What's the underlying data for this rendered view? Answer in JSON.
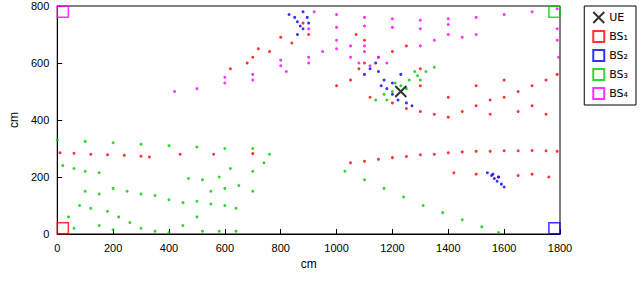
{
  "chart_data": {
    "type": "scatter",
    "xlabel": "cm",
    "ylabel": "cm",
    "xlim": [
      0,
      1800
    ],
    "ylim": [
      0,
      800
    ],
    "xticks": [
      0,
      200,
      400,
      600,
      800,
      1000,
      1200,
      1400,
      1600,
      1800
    ],
    "yticks": [
      0,
      200,
      400,
      600,
      800
    ],
    "grid": false,
    "legend": "right",
    "series": [
      {
        "name": "UE",
        "color": "#000000",
        "marker": "x",
        "x": [
          1230
        ],
        "y": [
          500
        ]
      },
      {
        "name": "BS₁",
        "color": "#ff0000",
        "marker": "square",
        "station": [
          20,
          20
        ],
        "x": [
          10,
          60,
          120,
          180,
          240,
          300,
          330,
          440,
          560,
          700,
          1050,
          1100,
          1150,
          1200,
          1250,
          1300,
          1350,
          1400,
          1450,
          1500,
          1550,
          1600,
          1650,
          1700,
          1750,
          1790,
          1420,
          1500,
          1580,
          1650,
          1700,
          1760,
          1000,
          1050,
          1080,
          1100,
          1150,
          1120,
          1200,
          1250,
          1300,
          1350,
          1400,
          1450,
          1500,
          1550,
          1600,
          1650,
          1700,
          1750,
          1790,
          1300,
          1400,
          1500,
          1600,
          1700,
          1750,
          1650,
          1550,
          1300,
          1200,
          1250,
          1100,
          1070,
          900,
          880,
          800,
          700,
          720,
          620,
          680,
          760,
          840
        ],
        "y": [
          285,
          283,
          280,
          278,
          276,
          273,
          270,
          280,
          280,
          282,
          250,
          255,
          262,
          268,
          272,
          278,
          280,
          285,
          288,
          290,
          290,
          292,
          292,
          293,
          292,
          290,
          215,
          210,
          200,
          205,
          210,
          200,
          520,
          540,
          580,
          600,
          620,
          480,
          460,
          440,
          430,
          420,
          410,
          430,
          450,
          470,
          480,
          500,
          520,
          540,
          560,
          520,
          480,
          520,
          540,
          450,
          420,
          430,
          420,
          580,
          640,
          660,
          680,
          700,
          700,
          740,
          690,
          620,
          650,
          580,
          600,
          640,
          670
        ]
      },
      {
        "name": "BS₂",
        "color": "#0000ff",
        "marker": "square",
        "station": [
          1780,
          20
        ],
        "x": [
          830,
          850,
          860,
          870,
          880,
          895,
          900,
          880,
          860,
          1100,
          1120,
          1150,
          1170,
          1180,
          1200,
          1220,
          1250,
          1270,
          1140,
          1160,
          1200,
          1230,
          1540,
          1555,
          1565,
          1575,
          1590,
          1600,
          1560,
          1580
        ],
        "y": [
          770,
          760,
          745,
          730,
          720,
          760,
          740,
          780,
          700,
          560,
          580,
          570,
          540,
          510,
          490,
          470,
          460,
          450,
          600,
          520,
          530,
          560,
          215,
          205,
          195,
          185,
          175,
          165,
          210,
          200
        ]
      },
      {
        "name": "BS₃",
        "color": "#00cc00",
        "marker": "square",
        "station": [
          1780,
          780
        ],
        "x": [
          1140,
          1170,
          1200,
          1230,
          1260,
          1290,
          1320,
          1350,
          1180,
          1250,
          1300,
          1210,
          1280,
          1030,
          1100,
          1170,
          1240,
          1310,
          1380,
          1450,
          1520,
          1580,
          0,
          100,
          200,
          300,
          400,
          500,
          600,
          700,
          760,
          20,
          60,
          100,
          150,
          200,
          250,
          300,
          350,
          400,
          450,
          500,
          550,
          600,
          640,
          100,
          150,
          80,
          120,
          180,
          220,
          260,
          300,
          350,
          400,
          450,
          500,
          550,
          600,
          650,
          700,
          620,
          580,
          520,
          470,
          700,
          740,
          40,
          60,
          150,
          200,
          520,
          580,
          640
        ],
        "y": [
          470,
          490,
          500,
          520,
          540,
          555,
          570,
          585,
          470,
          510,
          540,
          530,
          570,
          220,
          190,
          160,
          130,
          100,
          75,
          50,
          25,
          5,
          330,
          325,
          320,
          315,
          310,
          305,
          300,
          300,
          280,
          240,
          230,
          220,
          215,
          160,
          150,
          140,
          135,
          120,
          110,
          115,
          105,
          100,
          90,
          150,
          140,
          100,
          90,
          80,
          60,
          40,
          20,
          10,
          5,
          30,
          60,
          150,
          160,
          170,
          150,
          230,
          200,
          190,
          195,
          220,
          250,
          60,
          20,
          30,
          15,
          10,
          10,
          10
        ]
      },
      {
        "name": "BS₄",
        "color": "#ff00ff",
        "marker": "square",
        "station": [
          20,
          780
        ],
        "x": [
          920,
          1000,
          1100,
          1200,
          1300,
          1400,
          1500,
          1600,
          1700,
          1790,
          1790,
          1790,
          1795,
          900,
          1000,
          1100,
          1200,
          1300,
          1400,
          420,
          500,
          600,
          700,
          800,
          900,
          1000,
          1100,
          600,
          800,
          900,
          950,
          700,
          820,
          1000,
          1050,
          1100,
          1150,
          1080,
          1120,
          1180,
          1050,
          1300,
          1350,
          1400,
          1450,
          1500
        ],
        "y": [
          780,
          770,
          760,
          755,
          750,
          755,
          760,
          770,
          780,
          790,
          720,
          680,
          620,
          720,
          725,
          730,
          725,
          720,
          735,
          500,
          510,
          530,
          560,
          590,
          620,
          650,
          660,
          550,
          610,
          600,
          640,
          540,
          570,
          680,
          660,
          640,
          620,
          600,
          590,
          600,
          620,
          660,
          680,
          700,
          690,
          700
        ]
      }
    ]
  }
}
